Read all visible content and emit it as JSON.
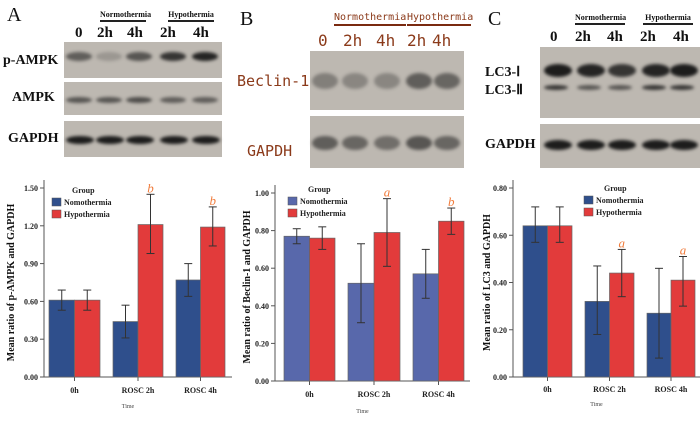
{
  "panels": {
    "A": {
      "label": "A",
      "groups": [
        "Normothermia",
        "Hypothermia"
      ],
      "lanes": [
        "0",
        "2h",
        "4h",
        "2h",
        "4h"
      ],
      "rows": [
        "p-AMPK",
        "AMPK",
        "GAPDH"
      ]
    },
    "B": {
      "label": "B",
      "groups": [
        "Normothermia",
        "Hypothermia"
      ],
      "lanes": [
        "0",
        "2h",
        "4h",
        "2h",
        "4h"
      ],
      "rows": [
        "Beclin-1",
        "GAPDH"
      ]
    },
    "C": {
      "label": "C",
      "groups": [
        "Normothermia",
        "Hypothermia"
      ],
      "lanes": [
        "0",
        "2h",
        "4h",
        "2h",
        "4h"
      ],
      "rows": [
        "LC3-Ⅰ",
        "LC3-Ⅱ",
        "GAPDH"
      ]
    }
  },
  "colors": {
    "nomothermia": "#2f4f8c",
    "nomothermia_b": "#5868ab",
    "hypothermia": "#e23b3b",
    "annotation": "#f07a3a"
  },
  "chart_data": [
    {
      "type": "bar",
      "title": "",
      "ylabel": "Mean ratio of p-AMPK and GAPDH",
      "xlabel": "Time",
      "legend_title": "Group",
      "legend_placement": "top-left",
      "categories": [
        "0h",
        "ROSC 2h",
        "ROSC 4h"
      ],
      "ylim": [
        0,
        1.5
      ],
      "yticks": [
        "0.00",
        "0.30",
        "0.60",
        "0.90",
        "1.20",
        "1.50"
      ],
      "series": [
        {
          "name": "Nomothermia",
          "values": [
            0.61,
            0.44,
            0.77
          ],
          "err": [
            [
              0.53,
              0.69
            ],
            [
              0.31,
              0.57
            ],
            [
              0.64,
              0.9
            ]
          ]
        },
        {
          "name": "Hypothermia",
          "values": [
            0.61,
            1.21,
            1.19
          ],
          "err": [
            [
              0.53,
              0.69
            ],
            [
              0.98,
              1.45
            ],
            [
              1.04,
              1.35
            ]
          ]
        }
      ],
      "annotations": [
        "",
        "b",
        "b"
      ]
    },
    {
      "type": "bar",
      "title": "",
      "ylabel": "Mean ratio of Beclin-1 and GAPDH",
      "xlabel": "Time",
      "legend_title": "Group",
      "legend_placement": "top-left",
      "categories": [
        "0h",
        "ROSC 2h",
        "ROSC 4h"
      ],
      "ylim": [
        0,
        1.0
      ],
      "yticks": [
        "0.00",
        "0.20",
        "0.40",
        "0.60",
        "0.80",
        "1.00"
      ],
      "series": [
        {
          "name": "Nomothermia",
          "values": [
            0.77,
            0.52,
            0.57
          ],
          "err": [
            [
              0.73,
              0.81
            ],
            [
              0.31,
              0.73
            ],
            [
              0.44,
              0.7
            ]
          ]
        },
        {
          "name": "Hypothermia",
          "values": [
            0.76,
            0.79,
            0.85
          ],
          "err": [
            [
              0.7,
              0.82
            ],
            [
              0.61,
              0.97
            ],
            [
              0.78,
              0.92
            ]
          ]
        }
      ],
      "annotations": [
        "",
        "a",
        "b"
      ]
    },
    {
      "type": "bar",
      "title": "",
      "ylabel": "Mean ratio of LC3 and GAPDH",
      "xlabel": "Time",
      "legend_title": "Group",
      "legend_placement": "top-right",
      "categories": [
        "0h",
        "ROSC 2h",
        "ROSC 4h"
      ],
      "ylim": [
        0,
        0.8
      ],
      "yticks": [
        "0.00",
        "0.20",
        "0.40",
        "0.60",
        "0.80"
      ],
      "series": [
        {
          "name": "Nomothermia",
          "values": [
            0.64,
            0.32,
            0.27
          ],
          "err": [
            [
              0.57,
              0.72
            ],
            [
              0.18,
              0.47
            ],
            [
              0.08,
              0.46
            ]
          ]
        },
        {
          "name": "Hypothermia",
          "values": [
            0.64,
            0.44,
            0.41
          ],
          "err": [
            [
              0.57,
              0.72
            ],
            [
              0.34,
              0.54
            ],
            [
              0.3,
              0.51
            ]
          ]
        }
      ],
      "annotations": [
        "",
        "a",
        "a"
      ]
    }
  ]
}
